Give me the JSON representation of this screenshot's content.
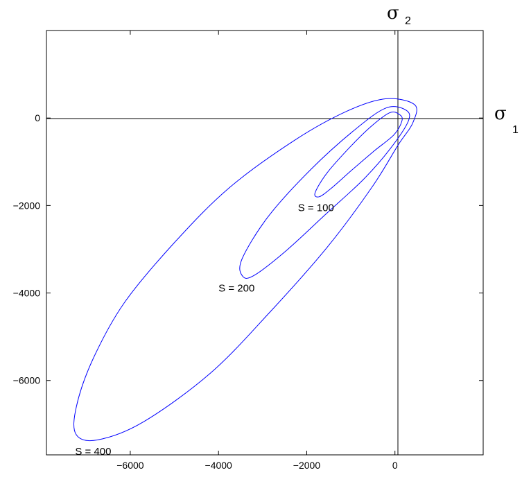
{
  "chart_data": {
    "type": "line",
    "title": "",
    "xlabel": "σ",
    "xlabel_sub": "1",
    "ylabel": "σ",
    "ylabel_sub": "2",
    "xlim": [
      -7900,
      2000
    ],
    "ylim": [
      -7700,
      2000
    ],
    "xticks": [
      -6000,
      -4000,
      -2000,
      0
    ],
    "xtick_labels": [
      "−6000",
      "−4000",
      "−2000",
      "0"
    ],
    "yticks": [
      0,
      -2000,
      -4000,
      -6000
    ],
    "ytick_labels": [
      "0",
      "−2000",
      "−4000",
      "−6000"
    ],
    "grid": false,
    "reference_lines": {
      "x": 0,
      "y": 0
    },
    "series_color": "#0000ff",
    "series": [
      {
        "label": "S = 100",
        "label_pos": [
          -2200,
          -2130
        ],
        "points": [
          [
            100,
            80
          ],
          [
            -120,
            120
          ],
          [
            -560,
            -210
          ],
          [
            -1080,
            -730
          ],
          [
            -1550,
            -1270
          ],
          [
            -1810,
            -1710
          ],
          [
            -1720,
            -1800
          ],
          [
            -1460,
            -1620
          ],
          [
            -1000,
            -1210
          ],
          [
            -480,
            -760
          ],
          [
            -20,
            -380
          ],
          [
            160,
            -60
          ],
          [
            100,
            80
          ]
        ]
      },
      {
        "label": "S = 200",
        "label_pos": [
          -4000,
          -3970
        ],
        "points": [
          [
            250,
            180
          ],
          [
            -200,
            230
          ],
          [
            -900,
            -260
          ],
          [
            -1900,
            -1170
          ],
          [
            -2870,
            -2250
          ],
          [
            -3470,
            -3230
          ],
          [
            -3450,
            -3620
          ],
          [
            -3180,
            -3590
          ],
          [
            -2450,
            -3020
          ],
          [
            -1560,
            -2190
          ],
          [
            -720,
            -1410
          ],
          [
            -120,
            -720
          ],
          [
            300,
            -80
          ],
          [
            250,
            180
          ]
        ]
      },
      {
        "label": "S = 400",
        "label_pos": [
          -7250,
          -7700
        ],
        "points": [
          [
            450,
            300
          ],
          [
            -200,
            440
          ],
          [
            -1080,
            160
          ],
          [
            -2260,
            -500
          ],
          [
            -3750,
            -1590
          ],
          [
            -5010,
            -2860
          ],
          [
            -6140,
            -4230
          ],
          [
            -6850,
            -5520
          ],
          [
            -7220,
            -6590
          ],
          [
            -7230,
            -7230
          ],
          [
            -6750,
            -7360
          ],
          [
            -5710,
            -6950
          ],
          [
            -4180,
            -5830
          ],
          [
            -2820,
            -4420
          ],
          [
            -1540,
            -2960
          ],
          [
            -520,
            -1580
          ],
          [
            70,
            -620
          ],
          [
            400,
            -120
          ],
          [
            450,
            300
          ]
        ]
      }
    ]
  }
}
